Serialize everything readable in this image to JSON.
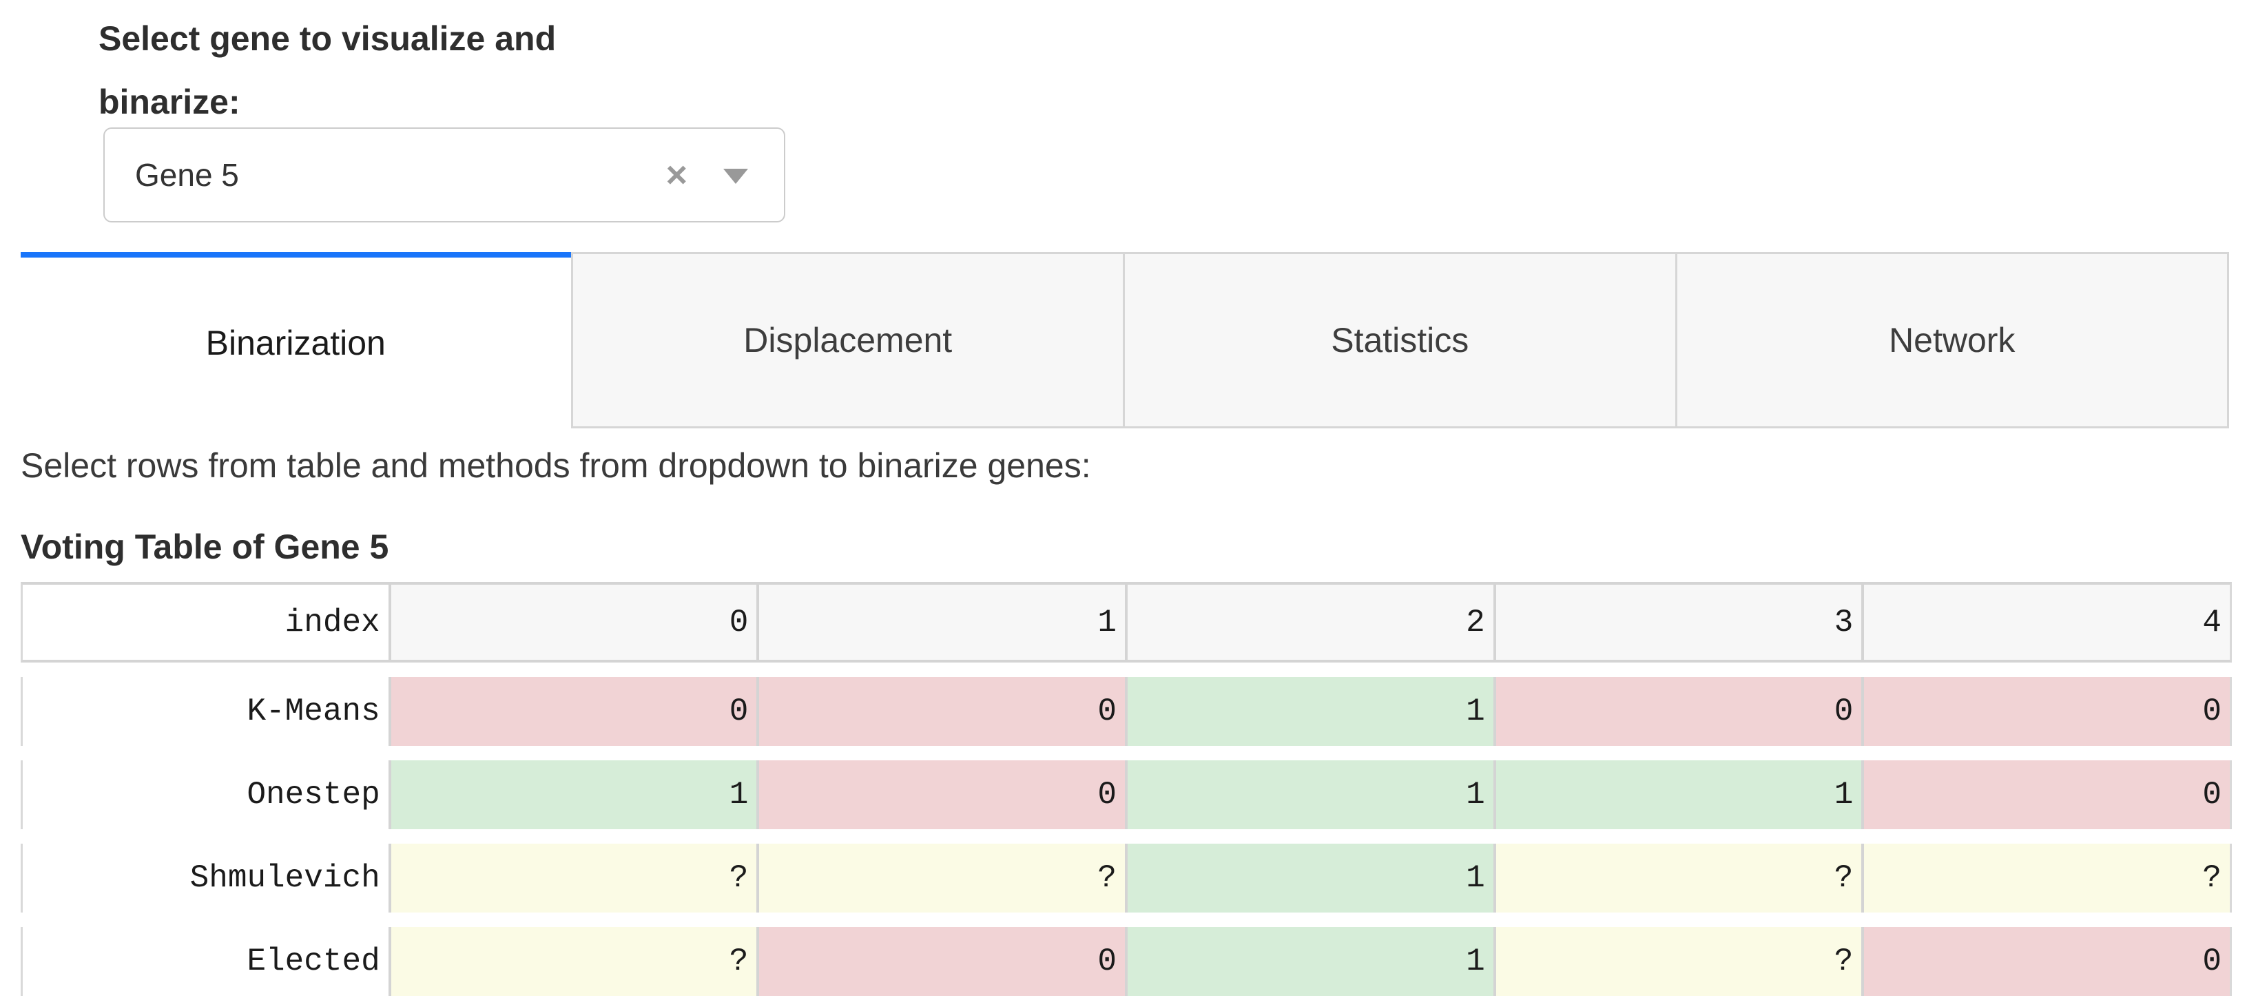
{
  "gene_selector": {
    "label": "Select gene to visualize and binarize:",
    "value": "Gene 5",
    "clear_icon": "×"
  },
  "tabs": [
    {
      "label": "Binarization",
      "active": true
    },
    {
      "label": "Displacement",
      "active": false
    },
    {
      "label": "Statistics",
      "active": false
    },
    {
      "label": "Network",
      "active": false
    }
  ],
  "instruction": "Select rows from table and methods from dropdown to binarize genes:",
  "table": {
    "title": "Voting Table of Gene 5",
    "columns": [
      "index",
      "0",
      "1",
      "2",
      "3",
      "4"
    ],
    "rows": [
      {
        "label": "K-Means",
        "values": [
          "0",
          "0",
          "1",
          "0",
          "0"
        ]
      },
      {
        "label": "Onestep",
        "values": [
          "1",
          "0",
          "1",
          "1",
          "0"
        ]
      },
      {
        "label": "Shmulevich",
        "values": [
          "?",
          "?",
          "1",
          "?",
          "?"
        ]
      },
      {
        "label": "Elected",
        "values": [
          "?",
          "0",
          "1",
          "?",
          "0"
        ]
      }
    ],
    "value_colors": {
      "0": "#f1d3d5",
      "1": "#d6edd8",
      "?": "#fbfbe5"
    }
  },
  "colors": {
    "accent_blue": "#1975fa",
    "tab_inactive_bg": "#f7f7f7",
    "table_border": "#d4d4d4"
  }
}
